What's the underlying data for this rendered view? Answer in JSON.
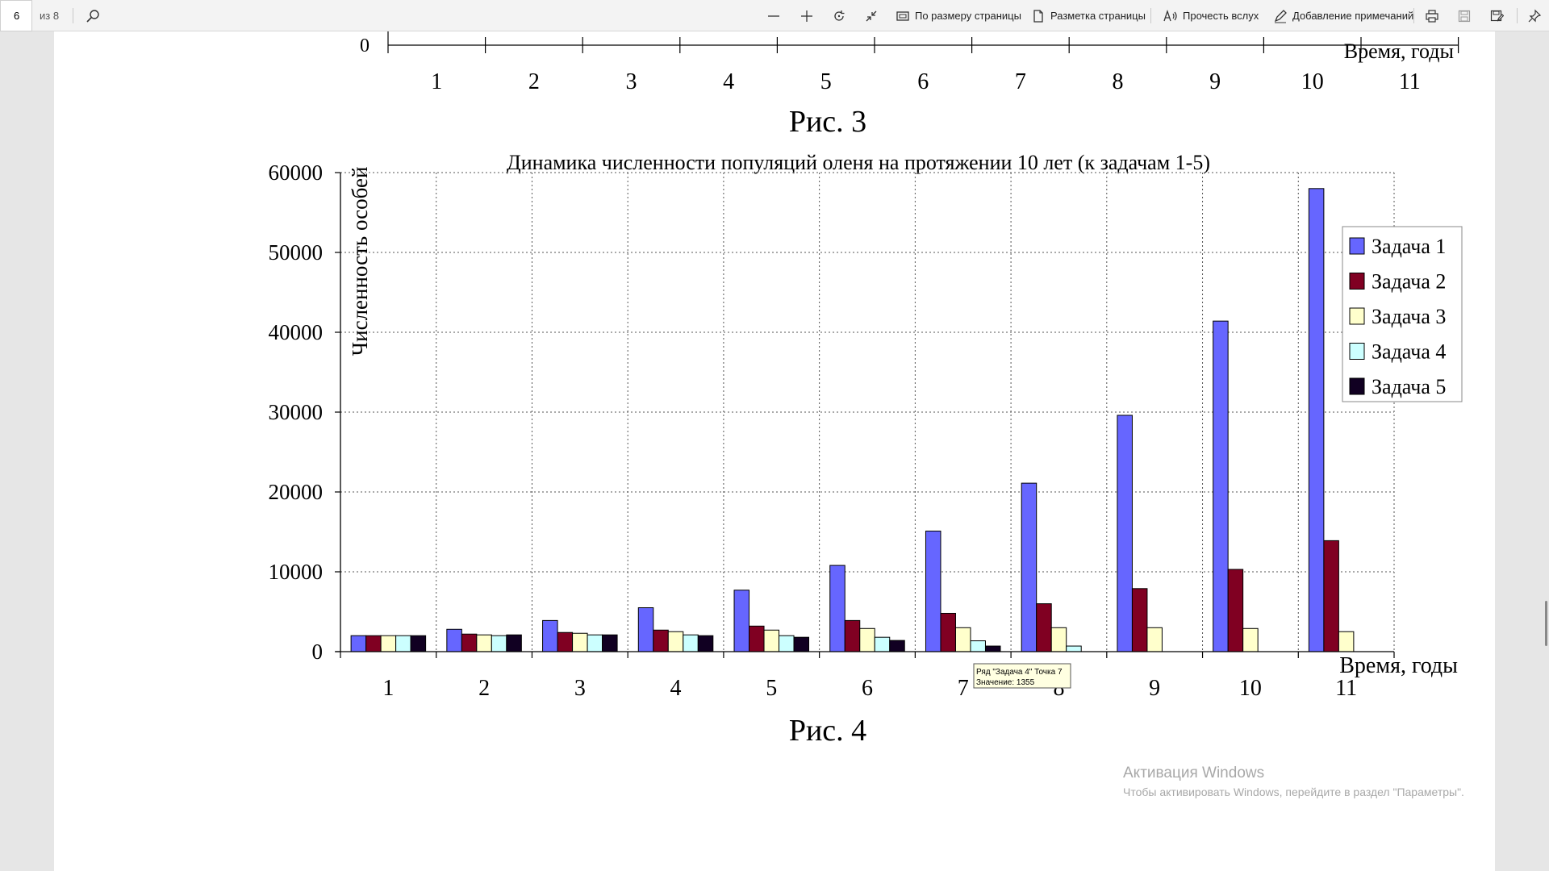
{
  "toolbar": {
    "page_current": "6",
    "page_total": "из 8",
    "buttons": {
      "fit_page": "По размеру страницы",
      "page_layout": "Разметка страницы",
      "read_aloud": "Прочесть вслух",
      "add_notes": "Добавление примечаний"
    },
    "icons": [
      "search-icon",
      "zoom-out-icon",
      "zoom-in-icon",
      "rotate-icon",
      "fit-width-icon",
      "fit-page-icon",
      "page-layout-icon",
      "read-aloud-icon",
      "ink-icon",
      "print-icon",
      "save-icon",
      "save-as-icon",
      "pin-icon"
    ]
  },
  "figure3": {
    "zero_label": "0",
    "ticks": [
      "1",
      "2",
      "3",
      "4",
      "5",
      "6",
      "7",
      "8",
      "9",
      "10",
      "11"
    ],
    "xlabel": "Время, годы",
    "caption": "Рис. 3"
  },
  "figure4": {
    "caption": "Рис. 4",
    "tooltip": {
      "line1": "Ряд \"Задача 4\" Точка 7",
      "line2": "Значение: 1355"
    }
  },
  "chart_data": {
    "type": "bar",
    "title": "Динамика численности популяций оленя на протяжении 10 лет (к задачам 1-5)",
    "ylabel": "Численность особей",
    "xlabel": "Время, годы",
    "ylim": [
      0,
      60000
    ],
    "yticks": [
      0,
      10000,
      20000,
      30000,
      40000,
      50000,
      60000
    ],
    "ytick_labels": [
      "0",
      "10000",
      "20000",
      "30000",
      "40000",
      "50000",
      "60000"
    ],
    "grid": true,
    "legend_position": "right",
    "categories": [
      "1",
      "2",
      "3",
      "4",
      "5",
      "6",
      "7",
      "8",
      "9",
      "10",
      "11"
    ],
    "series": [
      {
        "name": "Задача 1",
        "color": "#6666ff",
        "values": [
          2000,
          2800,
          3900,
          5500,
          7700,
          10800,
          15100,
          21100,
          29600,
          41400,
          58000
        ]
      },
      {
        "name": "Задача 2",
        "color": "#800022",
        "values": [
          2000,
          2200,
          2400,
          2700,
          3200,
          3900,
          4800,
          6000,
          7900,
          10300,
          13900
        ]
      },
      {
        "name": "Задача 3",
        "color": "#ffffcc",
        "values": [
          2000,
          2100,
          2300,
          2500,
          2700,
          2900,
          3000,
          3000,
          3000,
          2900,
          2500
        ]
      },
      {
        "name": "Задача 4",
        "color": "#ccffff",
        "values": [
          2000,
          2000,
          2100,
          2100,
          2000,
          1800,
          1355,
          700,
          0,
          0,
          0
        ]
      },
      {
        "name": "Задача 5",
        "color": "#110022",
        "values": [
          2000,
          2100,
          2100,
          2000,
          1800,
          1400,
          700,
          0,
          0,
          0,
          0
        ]
      }
    ]
  }
}
